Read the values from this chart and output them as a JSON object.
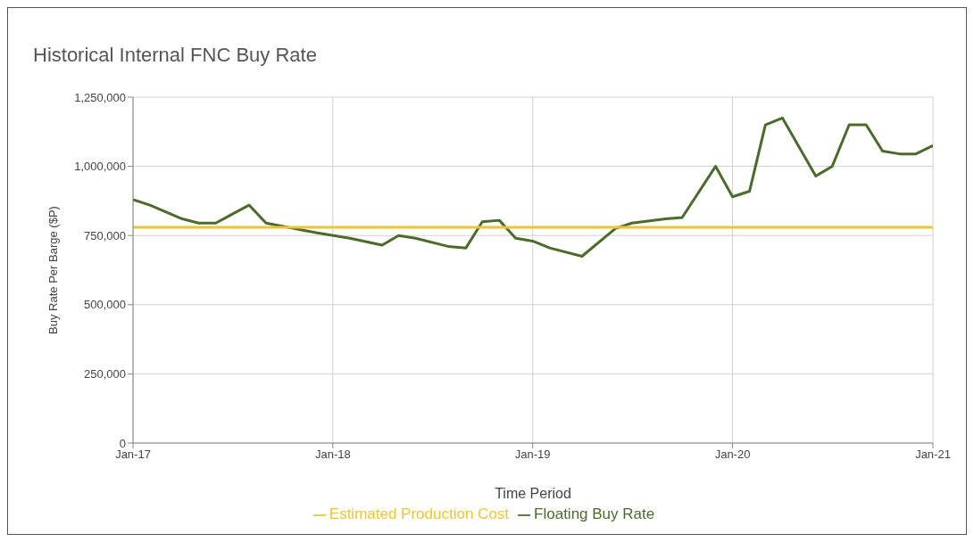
{
  "chart_data": {
    "type": "line",
    "title": "Historical Internal FNC Buy Rate",
    "xlabel": "Time Period",
    "ylabel": "Buy Rate Per Barge ($P)",
    "xlim": [
      "2017-01",
      "2021-01"
    ],
    "xticks": [
      {
        "value": "2017-01",
        "label": "Jan-17"
      },
      {
        "value": "2018-01",
        "label": "Jan-18"
      },
      {
        "value": "2019-01",
        "label": "Jan-19"
      },
      {
        "value": "2020-01",
        "label": "Jan-20"
      },
      {
        "value": "2021-01",
        "label": "Jan-21"
      }
    ],
    "ylim": [
      0,
      1250000
    ],
    "yticks": [
      {
        "value": 0,
        "label": "0"
      },
      {
        "value": 250000,
        "label": "250,000"
      },
      {
        "value": 500000,
        "label": "500,000"
      },
      {
        "value": 750000,
        "label": "750,000"
      },
      {
        "value": 1000000,
        "label": "1,000,000"
      },
      {
        "value": 1250000,
        "label": "1,250,000"
      }
    ],
    "grid": true,
    "legend": "bottom",
    "marker": "none",
    "series": [
      {
        "name": "Floating Buy Rate",
        "color": "#4a6b2a",
        "x": [
          "2017-01",
          "2017-02",
          "2017-04",
          "2017-05",
          "2017-06",
          "2017-08",
          "2017-09",
          "2017-12",
          "2018-02",
          "2018-04",
          "2018-05",
          "2018-06",
          "2018-08",
          "2018-09",
          "2018-10",
          "2018-11",
          "2018-12",
          "2019-01",
          "2019-02",
          "2019-04",
          "2019-06",
          "2019-07",
          "2019-09",
          "2019-10",
          "2019-12",
          "2020-01",
          "2020-02",
          "2020-03",
          "2020-04",
          "2020-06",
          "2020-07",
          "2020-08",
          "2020-09",
          "2020-10",
          "2020-11",
          "2020-12",
          "2021-01"
        ],
        "values": [
          880000,
          860000,
          810000,
          795000,
          795000,
          860000,
          795000,
          760000,
          740000,
          715000,
          750000,
          740000,
          710000,
          705000,
          800000,
          805000,
          740000,
          730000,
          705000,
          675000,
          775000,
          795000,
          810000,
          815000,
          1000000,
          890000,
          910000,
          1150000,
          1175000,
          965000,
          1000000,
          1150000,
          1150000,
          1055000,
          1045000,
          1045000,
          1075000
        ]
      },
      {
        "name": "Estimated Production Cost",
        "color": "#f2c42c",
        "x": [
          "2017-01",
          "2021-01"
        ],
        "values": [
          780000,
          780000
        ]
      }
    ]
  }
}
